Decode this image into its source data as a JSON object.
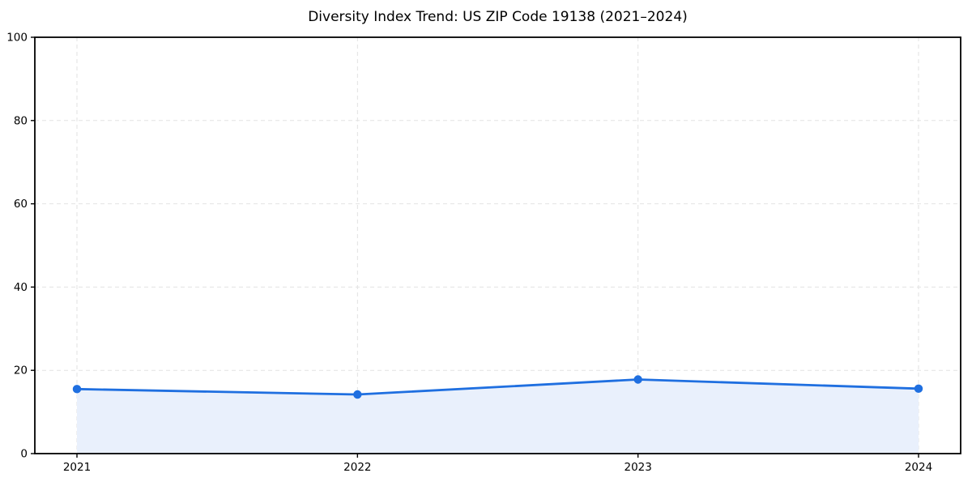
{
  "chart_data": {
    "type": "line",
    "title": "Diversity Index Trend: US ZIP Code 19138 (2021–2024)",
    "categories": [
      "2021",
      "2022",
      "2023",
      "2024"
    ],
    "series": [
      {
        "name": "Diversity Index",
        "values": [
          15.5,
          14.2,
          17.8,
          15.6
        ]
      }
    ],
    "xlabel": "",
    "ylabel": "",
    "ylim": [
      0,
      100
    ],
    "yticks": [
      0,
      20,
      40,
      60,
      80,
      100
    ],
    "grid": true,
    "grid_style": "dashed",
    "legend_position": "none",
    "area_fill": true,
    "marker": "circle",
    "colors": {
      "line": "#1f6fe0",
      "marker": "#1f6fe0",
      "area_fill": "#e9f0fc",
      "grid": "#e2e2e2",
      "spine": "#000000",
      "text": "#000000",
      "background": "#ffffff"
    }
  }
}
